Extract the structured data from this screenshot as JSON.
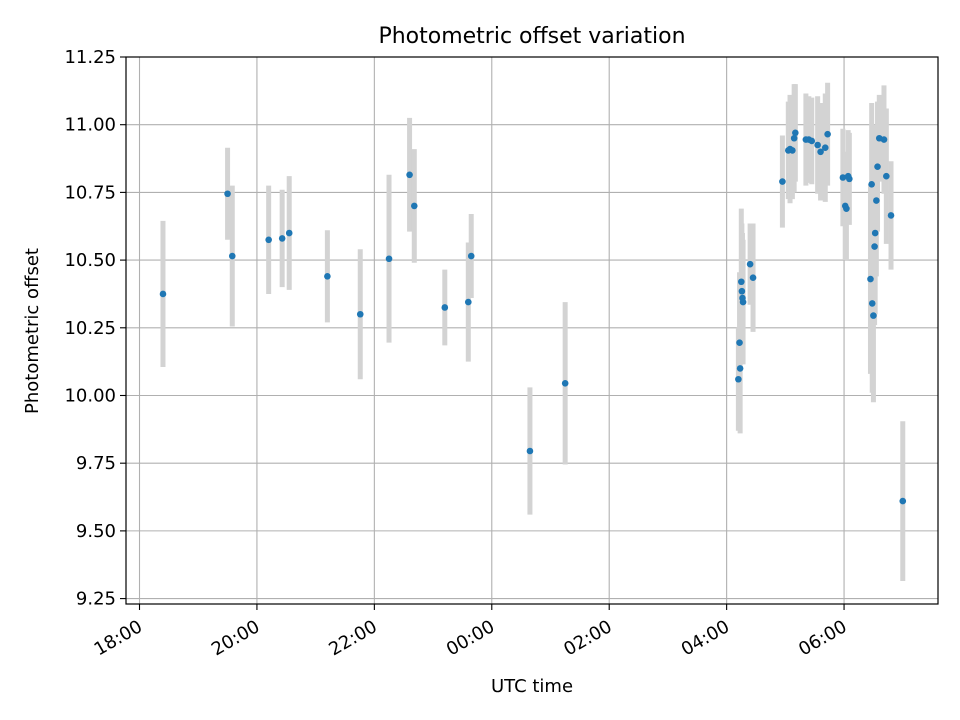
{
  "chart_data": {
    "type": "scatter",
    "title": "Photometric offset variation",
    "xlabel": "UTC time",
    "ylabel": "Photometric offset",
    "x_is_time": true,
    "x_unit": "hours since 18:00 UTC",
    "xlim": [
      -0.23,
      13.6
    ],
    "ylim": [
      9.23,
      11.25
    ],
    "xticks": [
      {
        "value": 0,
        "label": "18:00"
      },
      {
        "value": 2,
        "label": "20:00"
      },
      {
        "value": 4,
        "label": "22:00"
      },
      {
        "value": 6,
        "label": "00:00"
      },
      {
        "value": 8,
        "label": "02:00"
      },
      {
        "value": 10,
        "label": "04:00"
      },
      {
        "value": 12,
        "label": "06:00"
      }
    ],
    "yticks": [
      {
        "value": 9.25,
        "label": "9.25"
      },
      {
        "value": 9.5,
        "label": "9.50"
      },
      {
        "value": 9.75,
        "label": "9.75"
      },
      {
        "value": 10.0,
        "label": "10.00"
      },
      {
        "value": 10.25,
        "label": "10.25"
      },
      {
        "value": 10.5,
        "label": "10.50"
      },
      {
        "value": 10.75,
        "label": "10.75"
      },
      {
        "value": 11.0,
        "label": "11.00"
      },
      {
        "value": 11.25,
        "label": "11.25"
      }
    ],
    "grid": true,
    "colors": {
      "points": "#1f77b4",
      "errorbars": "#d3d3d3",
      "grid": "#b0b0b0"
    },
    "points": [
      {
        "x": 0.4,
        "y": 10.375,
        "err": 0.27
      },
      {
        "x": 1.5,
        "y": 10.745,
        "err": 0.17
      },
      {
        "x": 1.58,
        "y": 10.515,
        "err": 0.26
      },
      {
        "x": 2.2,
        "y": 10.575,
        "err": 0.2
      },
      {
        "x": 2.43,
        "y": 10.58,
        "err": 0.18
      },
      {
        "x": 2.55,
        "y": 10.6,
        "err": 0.21
      },
      {
        "x": 3.2,
        "y": 10.44,
        "err": 0.17
      },
      {
        "x": 3.76,
        "y": 10.3,
        "err": 0.24
      },
      {
        "x": 4.25,
        "y": 10.505,
        "err": 0.31
      },
      {
        "x": 4.6,
        "y": 10.815,
        "err": 0.21
      },
      {
        "x": 4.68,
        "y": 10.7,
        "err": 0.21
      },
      {
        "x": 5.2,
        "y": 10.325,
        "err": 0.14
      },
      {
        "x": 5.6,
        "y": 10.345,
        "err": 0.22
      },
      {
        "x": 5.65,
        "y": 10.515,
        "err": 0.155
      },
      {
        "x": 6.65,
        "y": 9.795,
        "err": 0.235
      },
      {
        "x": 7.25,
        "y": 10.045,
        "err": 0.3
      },
      {
        "x": 10.2,
        "y": 10.06,
        "err": 0.19
      },
      {
        "x": 10.22,
        "y": 10.195,
        "err": 0.26
      },
      {
        "x": 10.23,
        "y": 10.1,
        "err": 0.24
      },
      {
        "x": 10.25,
        "y": 10.42,
        "err": 0.27
      },
      {
        "x": 10.26,
        "y": 10.385,
        "err": 0.25
      },
      {
        "x": 10.27,
        "y": 10.36,
        "err": 0.24
      },
      {
        "x": 10.28,
        "y": 10.345,
        "err": 0.23
      },
      {
        "x": 10.4,
        "y": 10.485,
        "err": 0.15
      },
      {
        "x": 10.45,
        "y": 10.435,
        "err": 0.2
      },
      {
        "x": 10.95,
        "y": 10.79,
        "err": 0.17
      },
      {
        "x": 11.05,
        "y": 10.905,
        "err": 0.18
      },
      {
        "x": 11.08,
        "y": 10.91,
        "err": 0.2
      },
      {
        "x": 11.12,
        "y": 10.905,
        "err": 0.18
      },
      {
        "x": 11.15,
        "y": 10.95,
        "err": 0.2
      },
      {
        "x": 11.17,
        "y": 10.97,
        "err": 0.18
      },
      {
        "x": 11.35,
        "y": 10.945,
        "err": 0.17
      },
      {
        "x": 11.4,
        "y": 10.945,
        "err": 0.16
      },
      {
        "x": 11.45,
        "y": 10.94,
        "err": 0.16
      },
      {
        "x": 11.55,
        "y": 10.925,
        "err": 0.18
      },
      {
        "x": 11.6,
        "y": 10.9,
        "err": 0.18
      },
      {
        "x": 11.68,
        "y": 10.915,
        "err": 0.2
      },
      {
        "x": 11.72,
        "y": 10.965,
        "err": 0.19
      },
      {
        "x": 11.98,
        "y": 10.805,
        "err": 0.18
      },
      {
        "x": 12.02,
        "y": 10.7,
        "err": 0.2
      },
      {
        "x": 12.04,
        "y": 10.69,
        "err": 0.19
      },
      {
        "x": 12.07,
        "y": 10.81,
        "err": 0.17
      },
      {
        "x": 12.09,
        "y": 10.8,
        "err": 0.17
      },
      {
        "x": 12.45,
        "y": 10.43,
        "err": 0.35
      },
      {
        "x": 12.47,
        "y": 10.78,
        "err": 0.3
      },
      {
        "x": 12.48,
        "y": 10.34,
        "err": 0.33
      },
      {
        "x": 12.5,
        "y": 10.295,
        "err": 0.32
      },
      {
        "x": 12.52,
        "y": 10.55,
        "err": 0.29
      },
      {
        "x": 12.53,
        "y": 10.6,
        "err": 0.3
      },
      {
        "x": 12.55,
        "y": 10.72,
        "err": 0.28
      },
      {
        "x": 12.57,
        "y": 10.845,
        "err": 0.24
      },
      {
        "x": 12.6,
        "y": 10.95,
        "err": 0.16
      },
      {
        "x": 12.68,
        "y": 10.945,
        "err": 0.2
      },
      {
        "x": 12.72,
        "y": 10.81,
        "err": 0.25
      },
      {
        "x": 12.8,
        "y": 10.665,
        "err": 0.2
      },
      {
        "x": 13.0,
        "y": 9.61,
        "err": 0.295
      }
    ]
  }
}
